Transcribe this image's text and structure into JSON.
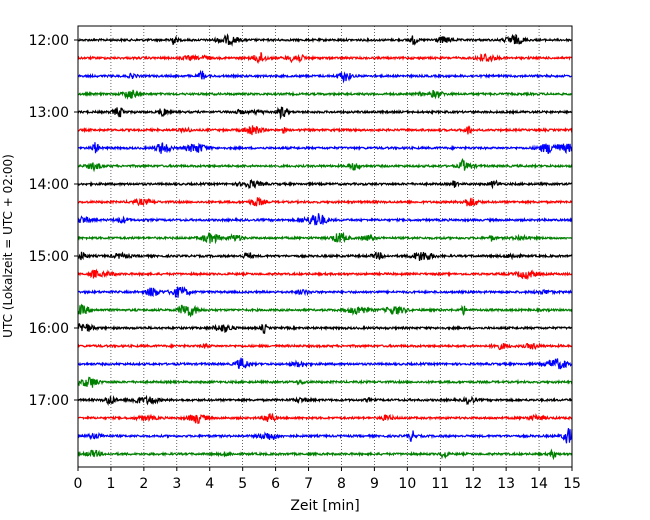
{
  "chart_data": {
    "type": "line",
    "title": "",
    "xlabel": "Zeit  [min]",
    "ylabel": "UTC (Lokalzeit = UTC + 02:00)",
    "xlim": [
      0,
      15
    ],
    "x_ticks": [
      0,
      1,
      2,
      3,
      4,
      5,
      6,
      7,
      8,
      9,
      10,
      11,
      12,
      13,
      14,
      15
    ],
    "x_tick_labels": [
      "0",
      "1",
      "2",
      "3",
      "4",
      "5",
      "6",
      "7",
      "8",
      "9",
      "10",
      "11",
      "12",
      "13",
      "14",
      "15"
    ],
    "y_ticks": [
      {
        "label": "12:00",
        "row": 0
      },
      {
        "label": "13:00",
        "row": 4
      },
      {
        "label": "14:00",
        "row": 8
      },
      {
        "label": "15:00",
        "row": 12
      },
      {
        "label": "16:00",
        "row": 16
      },
      {
        "label": "17:00",
        "row": 20
      }
    ],
    "grid": {
      "vertical": true,
      "style": "dotted"
    },
    "trace_colors": [
      "#000000",
      "#ff0000",
      "#0000ff",
      "#008000"
    ],
    "traces": [
      {
        "start": "12:00",
        "color": "#000000"
      },
      {
        "start": "12:15",
        "color": "#ff0000"
      },
      {
        "start": "12:30",
        "color": "#0000ff"
      },
      {
        "start": "12:45",
        "color": "#008000"
      },
      {
        "start": "13:00",
        "color": "#000000"
      },
      {
        "start": "13:15",
        "color": "#ff0000"
      },
      {
        "start": "13:30",
        "color": "#0000ff"
      },
      {
        "start": "13:45",
        "color": "#008000"
      },
      {
        "start": "14:00",
        "color": "#000000"
      },
      {
        "start": "14:15",
        "color": "#ff0000"
      },
      {
        "start": "14:30",
        "color": "#0000ff"
      },
      {
        "start": "14:45",
        "color": "#008000"
      },
      {
        "start": "15:00",
        "color": "#000000"
      },
      {
        "start": "15:15",
        "color": "#ff0000"
      },
      {
        "start": "15:30",
        "color": "#0000ff"
      },
      {
        "start": "15:45",
        "color": "#008000"
      },
      {
        "start": "16:00",
        "color": "#000000"
      },
      {
        "start": "16:15",
        "color": "#ff0000"
      },
      {
        "start": "16:30",
        "color": "#0000ff"
      },
      {
        "start": "16:45",
        "color": "#008000"
      },
      {
        "start": "17:00",
        "color": "#000000"
      },
      {
        "start": "17:15",
        "color": "#ff0000"
      },
      {
        "start": "17:30",
        "color": "#0000ff"
      },
      {
        "start": "17:45",
        "color": "#008000"
      }
    ]
  }
}
